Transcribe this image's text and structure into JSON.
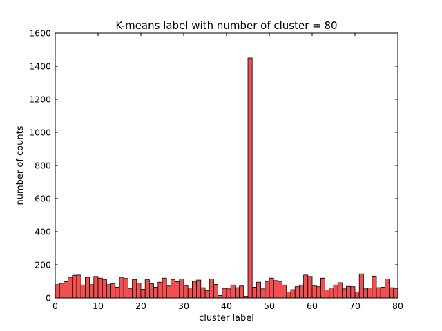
{
  "chart_data": {
    "type": "bar",
    "title": "K-means label with number of cluster = 80",
    "xlabel": "cluster label",
    "ylabel": "number of counts",
    "xlim": [
      0,
      80
    ],
    "ylim": [
      0,
      1600
    ],
    "x_ticks": [
      0,
      10,
      20,
      30,
      40,
      50,
      60,
      70,
      80
    ],
    "y_ticks": [
      0,
      200,
      400,
      600,
      800,
      1000,
      1200,
      1400,
      1600
    ],
    "grid": false,
    "bar_color": "#f05050",
    "edge_color": "#000000",
    "categories": [
      0,
      1,
      2,
      3,
      4,
      5,
      6,
      7,
      8,
      9,
      10,
      11,
      12,
      13,
      14,
      15,
      16,
      17,
      18,
      19,
      20,
      21,
      22,
      23,
      24,
      25,
      26,
      27,
      28,
      29,
      30,
      31,
      32,
      33,
      34,
      35,
      36,
      37,
      38,
      39,
      40,
      41,
      42,
      43,
      44,
      45,
      46,
      47,
      48,
      49,
      50,
      51,
      52,
      53,
      54,
      55,
      56,
      57,
      58,
      59,
      60,
      61,
      62,
      63,
      64,
      65,
      66,
      67,
      68,
      69,
      70,
      71,
      72,
      73,
      74,
      75,
      76,
      77,
      78,
      79
    ],
    "values": [
      80,
      88,
      98,
      125,
      137,
      138,
      78,
      125,
      80,
      130,
      120,
      112,
      80,
      85,
      65,
      125,
      118,
      58,
      112,
      90,
      52,
      110,
      85,
      65,
      95,
      120,
      72,
      112,
      98,
      115,
      75,
      60,
      100,
      108,
      62,
      45,
      115,
      82,
      15,
      58,
      55,
      78,
      62,
      72,
      10,
      1450,
      65,
      95,
      55,
      100,
      120,
      105,
      100,
      78,
      35,
      50,
      68,
      78,
      138,
      130,
      75,
      68,
      120,
      48,
      60,
      78,
      92,
      55,
      70,
      68,
      35,
      145,
      55,
      60,
      132,
      62,
      65,
      115,
      62,
      58
    ]
  }
}
